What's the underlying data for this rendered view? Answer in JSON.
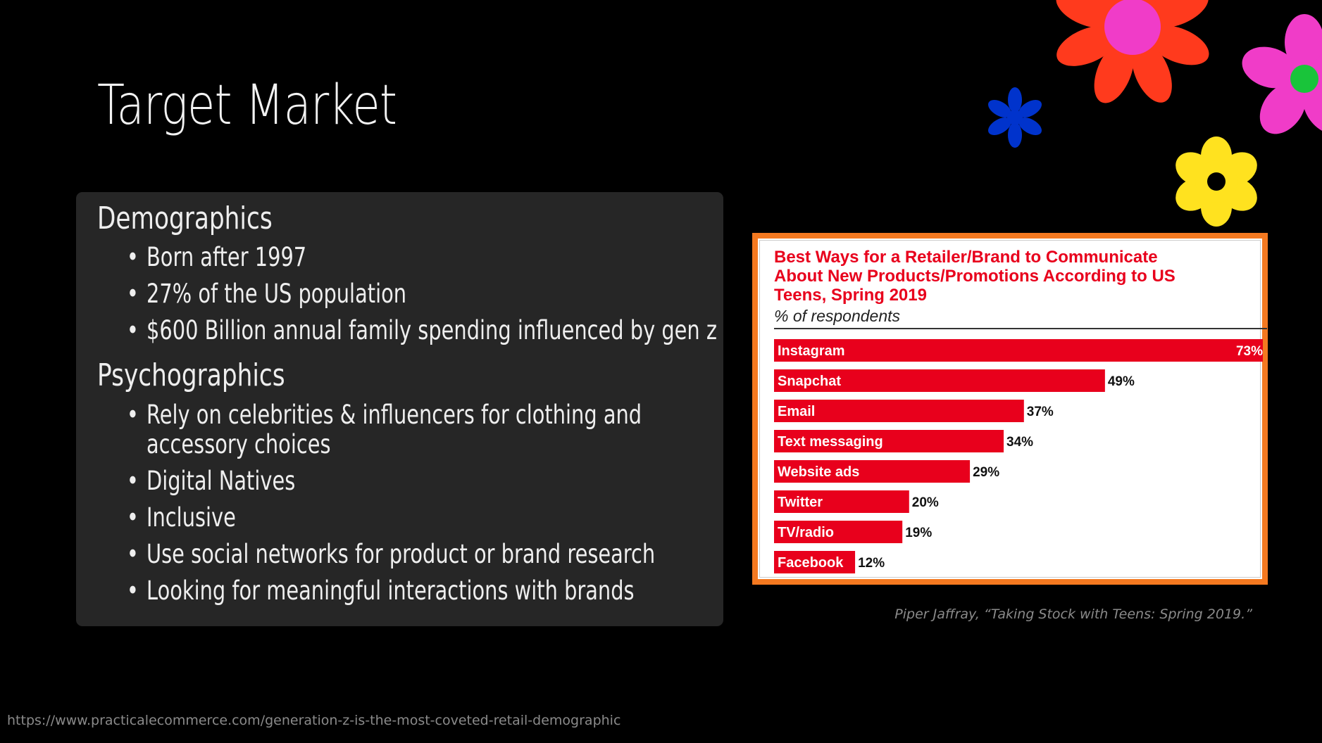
{
  "slide": {
    "title": "Target Market",
    "demographics": {
      "heading": "Demographics",
      "bullets": [
        "Born after 1997",
        "27% of the US population",
        "$600 Billion annual family spending influenced by gen z"
      ]
    },
    "psychographics": {
      "heading": "Psychographics",
      "bullets": [
        "Rely on  celebrities & influencers for clothing and",
        "accessory choices",
        "Digital Natives",
        "Inclusive",
        "Use social networks for product or brand research",
        "Looking for meaningful interactions with brands"
      ]
    },
    "bullet_glyph": "•",
    "source_caption": "Piper Jaffray, “Taking Stock with Teens: Spring 2019.”",
    "footer_url": "https://www.practicalecommerce.com/generation-z-is-the-most-coveted-retail-demographic"
  },
  "colors": {
    "background": "#000000",
    "panel": "#262626",
    "bar": "#e8001c",
    "frame": "#f47920",
    "flower_red": "#ff3a1d",
    "flower_magenta": "#f03cc8",
    "flower_blue": "#0033cc",
    "flower_yellow": "#ffe21f",
    "flower_green": "#19c43a"
  },
  "chart_data": {
    "type": "bar",
    "orientation": "horizontal",
    "title": "Best Ways for a Retailer/Brand to Communicate About New Products/Promotions According to US Teens, Spring 2019",
    "title_lines": [
      "Best Ways for a Retailer/Brand to Communicate",
      "About New Products/Promotions According to US",
      "Teens, Spring 2019"
    ],
    "subtitle": "% of respondents",
    "categories": [
      "Instagram",
      "Snapchat",
      "Email",
      "Text messaging",
      "Website ads",
      "Twitter",
      "TV/radio",
      "Facebook"
    ],
    "values": [
      73,
      49,
      37,
      34,
      29,
      20,
      19,
      12
    ],
    "value_suffix": "%",
    "xlim": [
      0,
      73
    ],
    "xlabel": "",
    "ylabel": ""
  }
}
